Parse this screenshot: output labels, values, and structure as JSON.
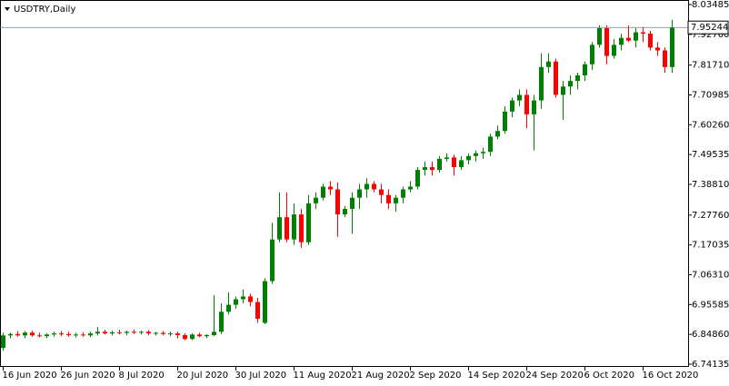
{
  "chart_data": {
    "type": "candlestick",
    "title": "USDTRY,Daily",
    "categories": [
      "16 Jun 2020",
      null,
      null,
      null,
      null,
      null,
      null,
      null,
      "26 Jun 2020",
      null,
      null,
      null,
      null,
      null,
      null,
      null,
      "8 Jul 2020",
      null,
      null,
      null,
      null,
      null,
      null,
      null,
      "20 Jul 2020",
      null,
      null,
      null,
      null,
      null,
      null,
      null,
      "30 Jul 2020",
      null,
      null,
      null,
      null,
      null,
      null,
      null,
      "11 Aug 2020",
      null,
      null,
      null,
      null,
      null,
      null,
      null,
      "21 Aug 2020",
      null,
      null,
      null,
      null,
      null,
      null,
      null,
      "2 Sep 2020",
      null,
      null,
      null,
      null,
      null,
      null,
      null,
      "14 Sep 2020",
      null,
      null,
      null,
      null,
      null,
      null,
      null,
      "24 Sep 2020",
      null,
      null,
      null,
      null,
      null,
      null,
      null,
      "6 Oct 2020",
      null,
      null,
      null,
      null,
      null,
      null,
      null,
      "16 Oct 2020",
      null,
      null,
      null,
      null
    ],
    "open": [
      6.8,
      6.845,
      6.85,
      6.845,
      6.855,
      6.845,
      6.842,
      6.848,
      6.852,
      6.85,
      6.846,
      6.848,
      6.845,
      6.852,
      6.858,
      6.852,
      6.856,
      6.854,
      6.858,
      6.855,
      6.858,
      6.852,
      6.854,
      6.85,
      6.852,
      6.846,
      6.832,
      6.848,
      6.842,
      6.846,
      6.858,
      6.93,
      6.955,
      6.975,
      6.985,
      6.965,
      6.89,
      7.04,
      7.19,
      7.27,
      7.19,
      7.28,
      7.18,
      7.32,
      7.34,
      7.38,
      7.37,
      7.28,
      7.3,
      7.34,
      7.37,
      7.39,
      7.37,
      7.35,
      7.32,
      7.34,
      7.37,
      7.38,
      7.44,
      7.45,
      7.44,
      7.48,
      7.485,
      7.45,
      7.475,
      7.49,
      7.5,
      7.505,
      7.56,
      7.58,
      7.65,
      7.69,
      7.71,
      7.64,
      7.69,
      7.81,
      7.83,
      7.71,
      7.74,
      7.76,
      7.78,
      7.82,
      7.89,
      7.95,
      7.85,
      7.89,
      7.915,
      7.905,
      7.935,
      7.93,
      7.88,
      7.87,
      7.81
    ],
    "high": [
      6.855,
      6.855,
      6.86,
      6.86,
      6.862,
      6.855,
      6.852,
      6.858,
      6.86,
      6.858,
      6.855,
      6.856,
      6.858,
      6.875,
      6.865,
      6.862,
      6.865,
      6.862,
      6.866,
      6.862,
      6.864,
      6.858,
      6.86,
      6.858,
      6.858,
      6.852,
      6.852,
      6.855,
      6.85,
      6.99,
      6.96,
      7.0,
      6.985,
      7.01,
      6.995,
      6.98,
      7.05,
      7.25,
      7.36,
      7.36,
      7.32,
      7.3,
      7.35,
      7.36,
      7.39,
      7.4,
      7.395,
      7.31,
      7.36,
      7.39,
      7.41,
      7.4,
      7.39,
      7.37,
      7.35,
      7.38,
      7.4,
      7.45,
      7.47,
      7.47,
      7.49,
      7.5,
      7.495,
      7.49,
      7.5,
      7.51,
      7.52,
      7.57,
      7.6,
      7.67,
      7.7,
      7.73,
      7.73,
      7.71,
      7.86,
      7.86,
      7.84,
      7.76,
      7.78,
      7.79,
      7.83,
      7.9,
      7.96,
      7.96,
      7.91,
      7.93,
      7.96,
      7.95,
      7.955,
      7.94,
      7.9,
      7.88,
      7.98
    ],
    "low": [
      6.79,
      6.835,
      6.84,
      6.835,
      6.84,
      6.838,
      6.835,
      6.84,
      6.842,
      6.84,
      6.838,
      6.84,
      6.838,
      6.845,
      6.848,
      6.845,
      6.848,
      6.846,
      6.85,
      6.848,
      6.846,
      6.845,
      6.846,
      6.842,
      6.835,
      6.828,
      6.828,
      6.838,
      6.835,
      6.842,
      6.85,
      6.92,
      6.94,
      6.96,
      6.95,
      6.89,
      6.885,
      7.03,
      7.18,
      7.18,
      7.17,
      7.16,
      7.17,
      7.3,
      7.33,
      7.35,
      7.2,
      7.27,
      7.21,
      7.3,
      7.34,
      7.36,
      7.32,
      7.3,
      7.29,
      7.32,
      7.36,
      7.37,
      7.42,
      7.42,
      7.43,
      7.47,
      7.42,
      7.44,
      7.46,
      7.47,
      7.48,
      7.49,
      7.55,
      7.57,
      7.63,
      7.67,
      7.59,
      7.51,
      7.66,
      7.79,
      7.7,
      7.62,
      7.71,
      7.73,
      7.76,
      7.8,
      7.88,
      7.82,
      7.84,
      7.87,
      7.9,
      7.88,
      7.9,
      7.87,
      7.85,
      7.79,
      7.79
    ],
    "close": [
      6.845,
      6.85,
      6.845,
      6.855,
      6.845,
      6.842,
      6.848,
      6.852,
      6.85,
      6.846,
      6.848,
      6.845,
      6.852,
      6.858,
      6.852,
      6.856,
      6.854,
      6.858,
      6.855,
      6.858,
      6.852,
      6.854,
      6.85,
      6.852,
      6.846,
      6.832,
      6.848,
      6.842,
      6.846,
      6.858,
      6.93,
      6.955,
      6.975,
      6.985,
      6.965,
      6.905,
      7.04,
      7.19,
      7.27,
      7.19,
      7.28,
      7.18,
      7.32,
      7.34,
      7.38,
      7.37,
      7.28,
      7.3,
      7.34,
      7.37,
      7.39,
      7.37,
      7.35,
      7.32,
      7.34,
      7.37,
      7.38,
      7.44,
      7.45,
      7.44,
      7.48,
      7.485,
      7.45,
      7.475,
      7.49,
      7.5,
      7.505,
      7.56,
      7.58,
      7.65,
      7.69,
      7.71,
      7.64,
      7.69,
      7.81,
      7.83,
      7.71,
      7.74,
      7.76,
      7.78,
      7.82,
      7.89,
      7.95,
      7.85,
      7.89,
      7.915,
      7.905,
      7.935,
      7.93,
      7.88,
      7.87,
      7.81,
      7.95244
    ],
    "up_color": "#008000",
    "down_color": "#ff0000",
    "ylim": [
      6.74135,
      8.03485
    ],
    "yticks": [
      {
        "value": 6.74135,
        "label": "6.74135"
      },
      {
        "value": 6.8486,
        "label": "6.84860"
      },
      {
        "value": 6.95585,
        "label": "6.95585"
      },
      {
        "value": 7.0631,
        "label": "7.06310"
      },
      {
        "value": 7.17035,
        "label": "7.17035"
      },
      {
        "value": 7.2776,
        "label": "7.27760"
      },
      {
        "value": 7.3881,
        "label": "7.38810"
      },
      {
        "value": 7.49535,
        "label": "7.49535"
      },
      {
        "value": 7.6026,
        "label": "7.60260"
      },
      {
        "value": 7.70985,
        "label": "7.70985"
      },
      {
        "value": 7.8171,
        "label": "7.81710"
      },
      {
        "value": 7.9276,
        "label": "7.92760"
      },
      {
        "value": 8.03485,
        "label": "8.03485"
      }
    ],
    "last_price": {
      "value": 7.95244,
      "label": "7.95244"
    }
  }
}
